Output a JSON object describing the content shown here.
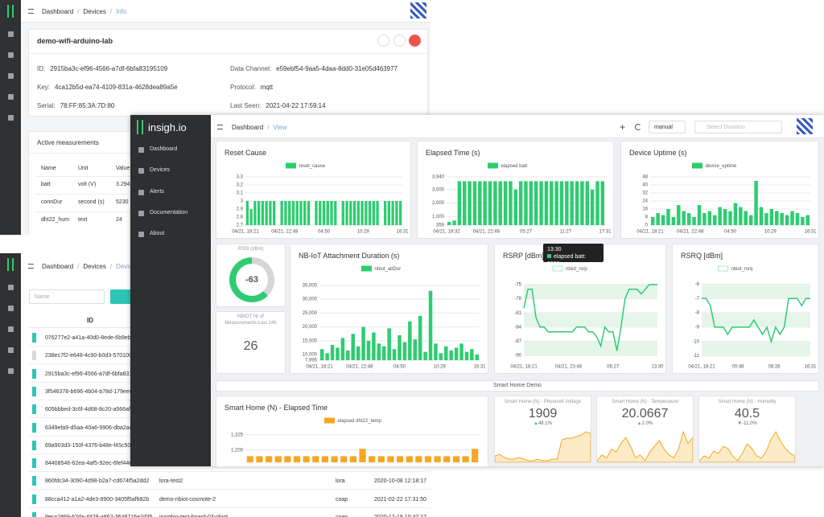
{
  "info_window": {
    "breadcrumb": [
      "Dashboard",
      "Devices",
      "Info"
    ],
    "device_name": "demo-wifi-arduino-lab",
    "fields": [
      {
        "label": "ID:",
        "value": "2915ba3c-ef96-4566-a7df-6bfa83195109"
      },
      {
        "label": "Data Channel:",
        "value": "e59ebf54-9aa5-4daa-8dd0-31e05d463977"
      },
      {
        "label": "Key:",
        "value": "4ca12b5d-ea74-4109-831a-4628dea89a5e"
      },
      {
        "label": "Protocol:",
        "value": "mqtt"
      },
      {
        "label": "Serial:",
        "value": "78:FF:85:3A:7D:80"
      },
      {
        "label": "Last Seen:",
        "value": "2021-04-22 17:59:14"
      }
    ],
    "measurements": {
      "title": "Active measurements",
      "columns": [
        "Name",
        "Unit",
        "Value"
      ],
      "rows": [
        [
          "batt",
          "volt (V)",
          "3.294"
        ],
        [
          "connDur",
          "second (s)",
          "5230"
        ],
        [
          "dht22_hum",
          "text",
          "24"
        ]
      ]
    }
  },
  "list_window": {
    "breadcrumb": [
      "Dashboard",
      "Devices",
      "Device List"
    ],
    "search_placeholder": "Name",
    "id_header": "ID",
    "rows": [
      {
        "color": "#2ec4b6",
        "cells": [
          "076277e2-a41a-40d0-8ede-6b9eb45"
        ]
      },
      {
        "color": "#d9d9d9",
        "cells": [
          "238ec7f2-e648-4c90-b0d3-5701000"
        ]
      },
      {
        "color": "#2ec4b6",
        "cells": [
          "2915ba3c-ef96-4566-a7df-6bfa8319"
        ]
      },
      {
        "color": "#2ec4b6",
        "cells": [
          "3f546378-b696-4b04-b78d-179eec5"
        ]
      },
      {
        "color": "#2ec4b6",
        "cells": [
          "605bbbed-3c6f-4d68-8c20-a566afd"
        ]
      },
      {
        "color": "#2ec4b6",
        "cells": [
          "6349efa9-d5aa-40a6-9906-dba2ac7"
        ]
      },
      {
        "color": "#2ec4b6",
        "cells": [
          "69a903d3-150f-4376-b48e-f45c50e"
        ]
      },
      {
        "color": "#2ec4b6",
        "cells": [
          "84408546-62ea-4af5-92ec-6fef44e"
        ]
      },
      {
        "color": "#2ec4b6",
        "cells": [
          "860fdc34-3090-4d98-b2a7-cd674f5a2dd2",
          "lora-test2",
          "lora",
          "2020-10-08 12:18:17"
        ]
      },
      {
        "color": "#2ec4b6",
        "cells": [
          "88cca412-a1a2-4de3-8900-3405f5af682b",
          "demo-nbiot-cosmote-2",
          "coap",
          "2021-02-22 17:31:50"
        ]
      },
      {
        "color": "#2ec4b6",
        "cells": [
          "9eca2869-62da-4828-a862-3648716e2d35",
          "insighio-test-board-03-nbiot",
          "coap",
          "2020-12-18 10:47:12"
        ]
      }
    ]
  },
  "dashboard": {
    "logo": "insigh.io",
    "menu": [
      "Dashboard",
      "Devices",
      "Alerts",
      "Documentation",
      "About"
    ],
    "breadcrumb": [
      "Dashboard",
      "View"
    ],
    "mode": "manual",
    "duration_placeholder": "Select Duration",
    "section": "Smart Home Demo",
    "tooltip": {
      "title": "13:30",
      "text": "elapsed batt: 3620"
    },
    "gauge": {
      "title": "RSSI (dBm)",
      "value": -63
    },
    "counter": {
      "title": "NBIOT Nr of Measurements Last 24h",
      "value": 26
    },
    "charts": [
      {
        "title": "Reset Cause",
        "legend": "reset_cause",
        "type": "bar",
        "color": "#2ecc71",
        "ylim": [
          2.7,
          3.3
        ],
        "yticks": [
          2.7,
          2.8,
          2.9,
          3,
          3.1,
          3.2,
          3.3
        ],
        "xlabels": [
          "04/21, 18:21",
          "04/21, 22:48",
          "04:50",
          "10:29",
          "16:31"
        ],
        "values": [
          3,
          2.9,
          3,
          3,
          3,
          3,
          3,
          3,
          2.7,
          3,
          3,
          3,
          3,
          3,
          3,
          3,
          3,
          2.7,
          3,
          3,
          3,
          3,
          3,
          3,
          2.7,
          3,
          3,
          3,
          3,
          3,
          3,
          3,
          3,
          3,
          3,
          2.7,
          3,
          3,
          3,
          3,
          3
        ]
      },
      {
        "title": "Elapsed Time (s)",
        "legend": "elapsed batt",
        "type": "bar",
        "color": "#2ecc71",
        "ylim": [
          359,
          3940
        ],
        "yticks": [
          359,
          {
            "value": 1000,
            "label": "1,000"
          },
          {
            "value": 2000,
            "label": "2,000"
          },
          {
            "value": 3000,
            "label": "3,000"
          },
          {
            "value": 3940,
            "label": "3,940"
          }
        ],
        "xlabels": [
          "04/21, 18:32",
          "04/21, 22:48",
          "05:27",
          "11:27",
          "17:31"
        ],
        "values": [
          600,
          700,
          3620,
          3620,
          3620,
          3620,
          3620,
          3620,
          3620,
          3620,
          3620,
          3620,
          3620,
          3000,
          3620,
          3620,
          3620,
          3620,
          3620,
          3620,
          3620,
          3620,
          3620,
          3620,
          3620,
          3620,
          3620,
          3620,
          3000,
          3620,
          3620
        ]
      },
      {
        "title": "Device Uptime (s)",
        "legend": "device_uptime",
        "type": "bar",
        "color": "#2ecc71",
        "ylim": [
          0,
          48
        ],
        "yticks": [
          0,
          8,
          16,
          24,
          32,
          40,
          48
        ],
        "xlabels": [
          "04/21, 18:21",
          "04/21, 22:48",
          "04:50",
          "10:29",
          "16:31"
        ],
        "values": [
          8,
          12,
          10,
          16,
          8,
          20,
          14,
          12,
          8,
          20,
          12,
          14,
          10,
          18,
          16,
          14,
          22,
          18,
          14,
          10,
          44,
          18,
          12,
          16,
          14,
          12,
          10,
          14,
          12,
          8,
          10
        ]
      },
      {
        "title": "NB-IoT Attachment Duration (s)",
        "legend": "nbiot_attDur",
        "type": "bar",
        "color": "#2ecc71",
        "ylim": [
          7995,
          37000
        ],
        "yticks": [
          {
            "value": 7995,
            "label": "7,995"
          },
          {
            "value": 10000,
            "label": "10,000"
          },
          {
            "value": 15000,
            "label": "15,000"
          },
          {
            "value": 20000,
            "label": "20,000"
          },
          {
            "value": 25000,
            "label": "25,000"
          },
          {
            "value": 30000,
            "label": "30,000"
          },
          {
            "value": 35000,
            "label": "35,000"
          }
        ],
        "xlabels": [
          "04/21, 18:21",
          "04/21, 22:48",
          "04:50",
          "10:29",
          "16:31"
        ],
        "values": [
          12000,
          10500,
          13500,
          12500,
          16000,
          11500,
          17500,
          13000,
          20000,
          15000,
          18000,
          14000,
          13000,
          19500,
          12000,
          17000,
          14500,
          22000,
          15500,
          24000,
          11000,
          33000,
          14000,
          10500,
          13000,
          11500,
          12500,
          14000,
          11000,
          12000,
          10000
        ]
      },
      {
        "title": "RSRP [dBm]",
        "legend": "nbiot_rsrp",
        "type": "line",
        "color": "#2ecc71",
        "ylim": [
          -91,
          -74
        ],
        "yticks": [
          -90,
          -87,
          -84,
          -81,
          -78,
          -75
        ],
        "xlabels": [
          "04/21, 18:21",
          "04/21, 23:48",
          "06:27",
          "13:30"
        ],
        "values": [
          -80,
          -76,
          -76,
          -82,
          -84,
          -84,
          -85,
          -85,
          -85,
          -85,
          -85,
          -85,
          -85,
          -84,
          -84,
          -84,
          -85,
          -85,
          -86,
          -88,
          -84,
          -85,
          -85,
          -89,
          -84,
          -78,
          -76,
          -76,
          -76,
          -77,
          -76,
          -75,
          -75,
          -75
        ]
      },
      {
        "title": "RSRQ [dBm]",
        "legend": "nbiot_rsrq",
        "type": "line",
        "color": "#2ecc71",
        "ylim": [
          -11.3,
          -5.7
        ],
        "yticks": [
          -11,
          -10,
          -9,
          -8,
          -7,
          -6
        ],
        "xlabels": [
          "04/21, 18:21",
          "00:48",
          "08:28",
          "16:31"
        ],
        "values": [
          -7,
          -7,
          -7.5,
          -9,
          -9,
          -9,
          -9.5,
          -9,
          -9,
          -9,
          -9,
          -9,
          -8.5,
          -9,
          -9.5,
          -9,
          -10,
          -9,
          -9.5,
          -9,
          -7,
          -7,
          -7,
          -7.5,
          -7,
          -7
        ]
      },
      {
        "title": "Smart Home (N) - Elapsed Time",
        "legend": "elapsed dht22_temp",
        "type": "bar",
        "color": "#f5a623",
        "ylim": [
          1100,
          1350
        ],
        "yticks": [
          {
            "value": 1200,
            "label": "1,200"
          },
          {
            "value": 1325,
            "label": "1,325"
          }
        ],
        "xlabels": [],
        "values": [
          1150,
          1150,
          1150,
          1150,
          1150,
          1150,
          1150,
          1150,
          1150,
          1150,
          1150,
          1150,
          1210,
          1150,
          1150,
          1150,
          1150,
          1150,
          1150,
          1150,
          1150,
          1150,
          1150,
          1150,
          1210
        ]
      }
    ],
    "stats": [
      {
        "title": "Smart Home (N) - Photocell Voltage",
        "value": 1909,
        "change": "48.1%",
        "direction": "up",
        "trend": [
          5,
          6,
          4,
          3,
          3,
          4,
          3,
          2,
          2,
          3,
          2,
          2,
          3,
          3,
          15,
          16,
          16,
          17,
          18,
          20,
          19
        ]
      },
      {
        "title": "Smart Home (N) - Temperature",
        "value": 20.0667,
        "change": "2.0%",
        "direction": "up",
        "trend": [
          8,
          10,
          9,
          12,
          11,
          14,
          16,
          13,
          9,
          10,
          8,
          11,
          13,
          15,
          12,
          10,
          9,
          12,
          18,
          14,
          16
        ]
      },
      {
        "title": "Smart Home (N) - Humidity",
        "value": 40.5,
        "change": "-11.0%",
        "direction": "down",
        "trend": [
          6,
          8,
          7,
          10,
          9,
          12,
          11,
          8,
          6,
          9,
          13,
          11,
          8,
          7,
          10,
          15,
          18,
          14,
          11,
          9,
          8
        ]
      }
    ]
  }
}
